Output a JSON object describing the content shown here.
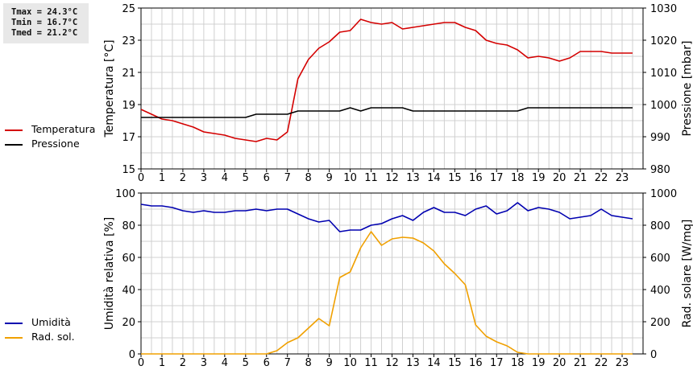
{
  "stats": {
    "tmax": "Tmax = 24.3°C",
    "tmin": "Tmin = 16.7°C",
    "tmed": "Tmed = 21.2°C"
  },
  "colors": {
    "temperature": "#d40000",
    "pressure": "#000000",
    "humidity": "#0000b0",
    "solar": "#f0a000",
    "grid": "#d0d0d0"
  },
  "chart_data": [
    {
      "type": "line",
      "x": [
        0,
        0.5,
        1,
        1.5,
        2,
        2.5,
        3,
        3.5,
        4,
        4.5,
        5,
        5.5,
        6,
        6.5,
        7,
        7.5,
        8,
        8.5,
        9,
        9.5,
        10,
        10.5,
        11,
        11.5,
        12,
        12.5,
        13,
        13.5,
        14,
        14.5,
        15,
        15.5,
        16,
        16.5,
        17,
        17.5,
        18,
        18.5,
        19,
        19.5,
        20,
        20.5,
        21,
        21.5,
        22,
        22.5,
        23,
        23.5
      ],
      "xticks": [
        "0",
        "1",
        "2",
        "3",
        "4",
        "5",
        "6",
        "7",
        "8",
        "9",
        "10",
        "11",
        "12",
        "13",
        "14",
        "15",
        "16",
        "17",
        "18",
        "19",
        "20",
        "21",
        "22",
        "23"
      ],
      "ylabel": "Temperatura [°C]",
      "y2label": "Pressione [mbar]",
      "ylim": [
        15,
        25
      ],
      "y2lim": [
        980,
        1030
      ],
      "yticks": [
        "15",
        "17",
        "19",
        "21",
        "23",
        "25"
      ],
      "y2ticks": [
        "980",
        "990",
        "1000",
        "1010",
        "1020",
        "1030"
      ],
      "grid": true,
      "legend_position": "left",
      "series": [
        {
          "name": "Temperatura",
          "axis": "left",
          "values": [
            18.7,
            18.4,
            18.1,
            18.0,
            17.8,
            17.6,
            17.3,
            17.2,
            17.1,
            16.9,
            16.8,
            16.7,
            16.9,
            16.8,
            17.3,
            20.6,
            21.8,
            22.5,
            22.9,
            23.5,
            23.6,
            24.3,
            24.1,
            24.0,
            24.1,
            23.7,
            23.8,
            23.9,
            24.0,
            24.1,
            24.1,
            23.8,
            23.6,
            23.0,
            22.8,
            22.7,
            22.4,
            21.9,
            22.0,
            21.9,
            21.7,
            21.9,
            22.3,
            22.3,
            22.3,
            22.2,
            22.2,
            22.2
          ]
        },
        {
          "name": "Pressione",
          "axis": "right",
          "values": [
            996,
            996,
            996,
            996,
            996,
            996,
            996,
            996,
            996,
            996,
            996,
            997,
            997,
            997,
            997,
            998,
            998,
            998,
            998,
            998,
            999,
            998,
            999,
            999,
            999,
            999,
            998,
            998,
            998,
            998,
            998,
            998,
            998,
            998,
            998,
            998,
            998,
            999,
            999,
            999,
            999,
            999,
            999,
            999,
            999,
            999,
            999,
            999
          ]
        }
      ]
    },
    {
      "type": "line",
      "x": [
        0,
        0.5,
        1,
        1.5,
        2,
        2.5,
        3,
        3.5,
        4,
        4.5,
        5,
        5.5,
        6,
        6.5,
        7,
        7.5,
        8,
        8.5,
        9,
        9.5,
        10,
        10.5,
        11,
        11.5,
        12,
        12.5,
        13,
        13.5,
        14,
        14.5,
        15,
        15.5,
        16,
        16.5,
        17,
        17.5,
        18,
        18.5,
        19,
        19.5,
        20,
        20.5,
        21,
        21.5,
        22,
        22.5,
        23,
        23.5
      ],
      "xticks": [
        "0",
        "1",
        "2",
        "3",
        "4",
        "5",
        "6",
        "7",
        "8",
        "9",
        "10",
        "11",
        "12",
        "13",
        "14",
        "15",
        "16",
        "17",
        "18",
        "19",
        "20",
        "21",
        "22",
        "23"
      ],
      "ylabel": "Umidità relativa [%]",
      "y2label": "Rad. solare [W/mq]",
      "ylim": [
        0,
        100
      ],
      "y2lim": [
        0,
        1000
      ],
      "yticks": [
        "0",
        "20",
        "40",
        "60",
        "80",
        "100"
      ],
      "y2ticks": [
        "0",
        "200",
        "400",
        "600",
        "800",
        "1000"
      ],
      "grid": true,
      "legend_position": "left",
      "series": [
        {
          "name": "Umidità",
          "axis": "left",
          "values": [
            93,
            92,
            92,
            91,
            89,
            88,
            89,
            88,
            88,
            89,
            89,
            90,
            89,
            90,
            90,
            87,
            84,
            82,
            83,
            76,
            77,
            77,
            80,
            81,
            84,
            86,
            83,
            88,
            91,
            88,
            88,
            86,
            90,
            92,
            87,
            89,
            94,
            89,
            91,
            90,
            88,
            84,
            85,
            86,
            90,
            86,
            85,
            84
          ]
        },
        {
          "name": "Rad. sol.",
          "axis": "right",
          "values": [
            0,
            0,
            0,
            0,
            0,
            0,
            0,
            0,
            0,
            0,
            0,
            0,
            0,
            20,
            70,
            100,
            160,
            220,
            175,
            475,
            510,
            660,
            760,
            675,
            715,
            725,
            720,
            690,
            640,
            560,
            500,
            430,
            180,
            110,
            75,
            50,
            10,
            0,
            0,
            0,
            0,
            0,
            0,
            0,
            0,
            0,
            0,
            0
          ]
        }
      ]
    }
  ]
}
